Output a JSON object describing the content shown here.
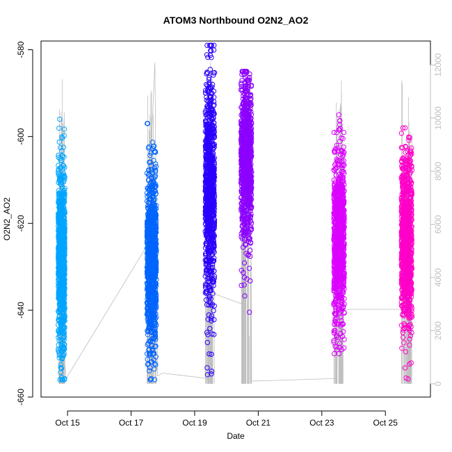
{
  "chart_data": {
    "type": "scatter",
    "title": "ATOM3 Northbound O2N2_AO2",
    "xlabel": "Date",
    "ylabel": "O2N2_AO2",
    "ylim": [
      -660,
      -578
    ],
    "y_ticks": [
      -580,
      -600,
      -620,
      -640,
      -660
    ],
    "y_tick_labels": [
      "-580",
      "-600",
      "-620",
      "-640",
      "-660"
    ],
    "xlim": [
      "2014-10-14 04:00",
      "2014-10-26 10:00"
    ],
    "x_ticks": [
      "2014-10-15",
      "2014-10-17",
      "2014-10-19",
      "2014-10-21",
      "2014-10-23",
      "2014-10-25"
    ],
    "x_tick_labels": [
      "Oct 15",
      "Oct 17",
      "Oct 19",
      "Oct 21",
      "Oct 23",
      "Oct 25"
    ],
    "secondary_axis": {
      "ylim": [
        -500,
        12900
      ],
      "ticks": [
        0,
        2000,
        4000,
        6000,
        8000,
        10000,
        12000
      ],
      "tick_labels": [
        "0",
        "2000",
        "4000",
        "6000",
        "8000",
        "10000",
        "12000"
      ],
      "color": "#bebebe"
    },
    "grid": false,
    "legend": "none",
    "series": [
      {
        "color": "#00a5ff",
        "x_range": [
          "2014-10-14 17:00",
          "2014-10-14 22:00"
        ],
        "y_range": [
          -656,
          -596
        ],
        "y_center": -628
      },
      {
        "color": "#0064ff",
        "x_range": [
          "2014-10-17 12:00",
          "2014-10-17 19:00"
        ],
        "y_range": [
          -656,
          -597
        ],
        "y_center": -628
      },
      {
        "color": "#2a00ff",
        "x_range": [
          "2014-10-19 08:00",
          "2014-10-19 15:00"
        ],
        "y_range": [
          -655,
          -579
        ],
        "y_center": -612
      },
      {
        "color": "#8c00ff",
        "x_range": [
          "2014-10-20 11:00",
          "2014-10-20 19:00"
        ],
        "y_range": [
          -641,
          -585
        ],
        "y_center": -605
      },
      {
        "color": "#dc00ff",
        "x_range": [
          "2014-10-23 09:00",
          "2014-10-23 17:00"
        ],
        "y_range": [
          -650,
          -595
        ],
        "y_center": -624
      },
      {
        "color": "#ff00c8",
        "x_range": [
          "2014-10-25 12:00",
          "2014-10-25 20:00"
        ],
        "y_range": [
          -656,
          -598
        ],
        "y_center": -624
      }
    ],
    "secondary_line": {
      "color": "#bebebe",
      "x": [
        "2014-10-14 17:00",
        "2014-10-14 23:00",
        "2014-10-17 12:00",
        "2014-10-17 14:00",
        "2014-10-17 18:00",
        "2014-10-17 20:00",
        "2014-10-18 00:00",
        "2014-10-19 10:00",
        "2014-10-19 12:00",
        "2014-10-19 14:00",
        "2014-10-20 12:00",
        "2014-10-20 18:00",
        "2014-10-20 19:00",
        "2014-10-23 11:00",
        "2014-10-23 14:00",
        "2014-10-23 17:00",
        "2014-10-25 12:00",
        "2014-10-25 15:00",
        "2014-10-25 18:00",
        "2014-10-25 20:00"
      ],
      "y": [
        3600,
        200,
        5200,
        7600,
        12100,
        300,
        400,
        200,
        12100,
        3400,
        3000,
        11700,
        100,
        200,
        4000,
        2800,
        2800,
        7000,
        9200,
        300
      ]
    }
  }
}
